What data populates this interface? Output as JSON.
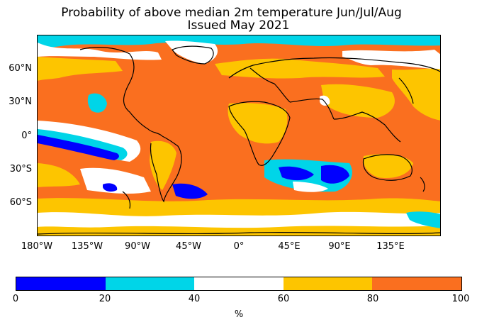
{
  "title": {
    "line1": "Probability of above median 2m temperature Jun/Jul/Aug",
    "line2": "Issued May 2021"
  },
  "axes": {
    "lat_labels": [
      "60°N",
      "30°N",
      "0°",
      "30°S",
      "60°S"
    ],
    "lon_labels": [
      "180°W",
      "135°W",
      "90°W",
      "45°W",
      "0°",
      "45°E",
      "90°E",
      "135°E"
    ]
  },
  "colorbar": {
    "colors": [
      "#0000ff",
      "#00d5e8",
      "#ffffff",
      "#fdc500",
      "#fa6f1f"
    ],
    "ticks": [
      "0",
      "20",
      "40",
      "60",
      "80",
      "100"
    ],
    "unit": "%"
  },
  "colors": {
    "below_20": "#0000ff",
    "range_20_40": "#00d5e8",
    "range_40_60": "#ffffff",
    "range_60_80": "#fdc500",
    "above_80": "#fa6f1f",
    "coastline": "#000000"
  }
}
